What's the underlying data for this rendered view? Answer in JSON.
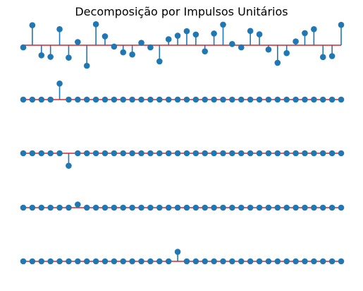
{
  "title": "Decomposição por Impulsos Unitários",
  "colors": {
    "stem": "#1f77b4",
    "baseline": "#d62728"
  },
  "chart_data": [
    {
      "type": "stem",
      "role": "original signal",
      "ylim": [
        -1.1,
        1.1
      ],
      "values": [
        -0.11,
        1.01,
        -0.51,
        -0.59,
        0.81,
        -0.63,
        0.16,
        -1.04,
        1.06,
        0.45,
        -0.07,
        -0.36,
        -0.47,
        0.12,
        -0.11,
        -0.82,
        0.3,
        0.48,
        0.71,
        0.54,
        -0.31,
        0.59,
        1.04,
        0.06,
        -0.11,
        0.72,
        0.55,
        -0.22,
        -0.89,
        -0.4,
        0.19,
        0.61,
        0.81,
        -0.6,
        -0.55,
        1.03
      ]
    },
    {
      "type": "stem",
      "role": "unit impulse at n = 4",
      "ylim": [
        -1.1,
        1.1
      ],
      "values": [
        0,
        0,
        0,
        0,
        0.81,
        0,
        0,
        0,
        0,
        0,
        0,
        0,
        0,
        0,
        0,
        0,
        0,
        0,
        0,
        0,
        0,
        0,
        0,
        0,
        0,
        0,
        0,
        0,
        0,
        0,
        0,
        0,
        0,
        0,
        0,
        0
      ]
    },
    {
      "type": "stem",
      "role": "unit impulse at n = 5",
      "ylim": [
        -1.1,
        1.1
      ],
      "values": [
        0,
        0,
        0,
        0,
        0,
        -0.63,
        0,
        0,
        0,
        0,
        0,
        0,
        0,
        0,
        0,
        0,
        0,
        0,
        0,
        0,
        0,
        0,
        0,
        0,
        0,
        0,
        0,
        0,
        0,
        0,
        0,
        0,
        0,
        0,
        0,
        0
      ]
    },
    {
      "type": "stem",
      "role": "unit impulse at n = 6",
      "ylim": [
        -1.1,
        1.1
      ],
      "values": [
        0,
        0,
        0,
        0,
        0,
        0,
        0.16,
        0,
        0,
        0,
        0,
        0,
        0,
        0,
        0,
        0,
        0,
        0,
        0,
        0,
        0,
        0,
        0,
        0,
        0,
        0,
        0,
        0,
        0,
        0,
        0,
        0,
        0,
        0,
        0,
        0
      ]
    },
    {
      "type": "stem",
      "role": "unit impulse at n = 17",
      "ylim": [
        -1.1,
        1.1
      ],
      "values": [
        0,
        0,
        0,
        0,
        0,
        0,
        0,
        0,
        0,
        0,
        0,
        0,
        0,
        0,
        0,
        0,
        0,
        0.48,
        0,
        0,
        0,
        0,
        0,
        0,
        0,
        0,
        0,
        0,
        0,
        0,
        0,
        0,
        0,
        0,
        0,
        0
      ]
    }
  ]
}
